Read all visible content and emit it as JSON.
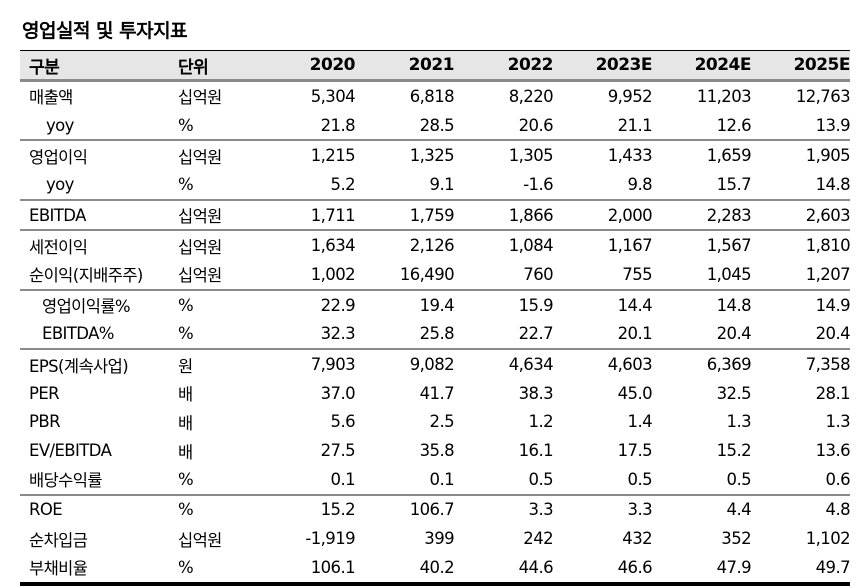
{
  "title": "영업실적 및 투자지표",
  "table": {
    "headers": [
      "구분",
      "단위",
      "2020",
      "2021",
      "2022",
      "2023E",
      "2024E",
      "2025E"
    ],
    "rows": [
      {
        "label": "매출액",
        "unit": "십억원",
        "values": [
          "5,304",
          "6,818",
          "8,220",
          "9,952",
          "11,203",
          "12,763"
        ]
      },
      {
        "label": "yoy",
        "unit": "%",
        "values": [
          "21.8",
          "28.5",
          "20.6",
          "21.1",
          "12.6",
          "13.9"
        ]
      },
      {
        "label": "영업이익",
        "unit": "십억원",
        "values": [
          "1,215",
          "1,325",
          "1,305",
          "1,433",
          "1,659",
          "1,905"
        ]
      },
      {
        "label": "yoy",
        "unit": "%",
        "values": [
          "5.2",
          "9.1",
          "-1.6",
          "9.8",
          "15.7",
          "14.8"
        ]
      },
      {
        "label": "EBITDA",
        "unit": "십억원",
        "values": [
          "1,711",
          "1,759",
          "1,866",
          "2,000",
          "2,283",
          "2,603"
        ]
      },
      {
        "label": "세전이익",
        "unit": "십억원",
        "values": [
          "1,634",
          "2,126",
          "1,084",
          "1,167",
          "1,567",
          "1,810"
        ]
      },
      {
        "label": "순이익(지배주주)",
        "unit": "십억원",
        "values": [
          "1,002",
          "16,490",
          "760",
          "755",
          "1,045",
          "1,207"
        ]
      },
      {
        "label": "영업이익률%",
        "unit": "%",
        "values": [
          "22.9",
          "19.4",
          "15.9",
          "14.4",
          "14.8",
          "14.9"
        ]
      },
      {
        "label": "EBITDA%",
        "unit": "%",
        "values": [
          "32.3",
          "25.8",
          "22.7",
          "20.1",
          "20.4",
          "20.4"
        ]
      },
      {
        "label": "EPS(계속사업)",
        "unit": "원",
        "values": [
          "7,903",
          "9,082",
          "4,634",
          "4,603",
          "6,369",
          "7,358"
        ]
      },
      {
        "label": "PER",
        "unit": "배",
        "values": [
          "37.0",
          "41.7",
          "38.3",
          "45.0",
          "32.5",
          "28.1"
        ]
      },
      {
        "label": "PBR",
        "unit": "배",
        "values": [
          "5.6",
          "2.5",
          "1.2",
          "1.4",
          "1.3",
          "1.3"
        ]
      },
      {
        "label": "EV/EBITDA",
        "unit": "배",
        "values": [
          "27.5",
          "35.8",
          "16.1",
          "17.5",
          "15.2",
          "13.6"
        ]
      },
      {
        "label": "배당수익률",
        "unit": "%",
        "values": [
          "0.1",
          "0.1",
          "0.5",
          "0.5",
          "0.5",
          "0.6"
        ]
      },
      {
        "label": "ROE",
        "unit": "%",
        "values": [
          "15.2",
          "106.7",
          "3.3",
          "3.3",
          "4.4",
          "4.8"
        ]
      },
      {
        "label": "순차입금",
        "unit": "십억원",
        "values": [
          "-1,919",
          "399",
          "242",
          "432",
          "352",
          "1,102"
        ]
      },
      {
        "label": "부채비율",
        "unit": "%",
        "values": [
          "106.1",
          "40.2",
          "44.6",
          "46.6",
          "47.9",
          "49.7"
        ]
      }
    ]
  },
  "colors": {
    "header_bg": "#e6e6e6",
    "separator": "#8a8a8a",
    "text": "#000000"
  }
}
